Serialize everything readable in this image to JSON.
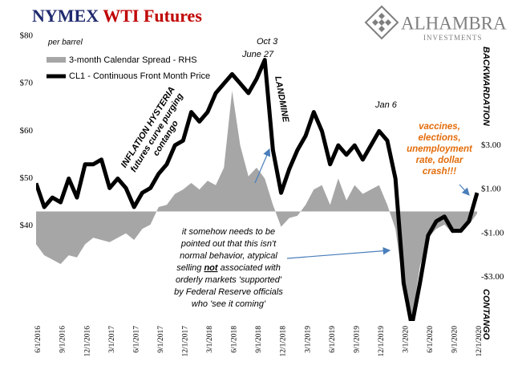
{
  "chart_data": {
    "type": "line",
    "title_parts": [
      "NYMEX",
      "WTI Futures"
    ],
    "logo": [
      "ALHAMBRA",
      "INVESTMENTS"
    ],
    "unit_note": "per barrel",
    "x": [
      "6/1/2016",
      "7/1/2016",
      "8/1/2016",
      "9/1/2016",
      "10/1/2016",
      "11/1/2016",
      "12/1/2016",
      "1/1/2017",
      "2/1/2017",
      "3/1/2017",
      "4/1/2017",
      "5/1/2017",
      "6/1/2017",
      "7/1/2017",
      "8/1/2017",
      "9/1/2017",
      "10/1/2017",
      "11/1/2017",
      "12/1/2017",
      "1/1/2018",
      "2/1/2018",
      "3/1/2018",
      "4/1/2018",
      "5/1/2018",
      "6/1/2018",
      "7/1/2018",
      "8/1/2018",
      "9/1/2018",
      "10/1/2018",
      "11/1/2018",
      "12/1/2018",
      "1/1/2019",
      "2/1/2019",
      "3/1/2019",
      "4/1/2019",
      "5/1/2019",
      "6/1/2019",
      "7/1/2019",
      "8/1/2019",
      "9/1/2019",
      "10/1/2019",
      "11/1/2019",
      "12/1/2019",
      "1/1/2020",
      "2/1/2020",
      "3/1/2020",
      "4/1/2020",
      "5/1/2020",
      "6/1/2020",
      "7/1/2020",
      "8/1/2020",
      "9/1/2020",
      "10/1/2020",
      "11/1/2020",
      "12/1/2020"
    ],
    "xticks": [
      "6/1/2016",
      "9/1/2016",
      "12/1/2016",
      "3/1/2017",
      "6/1/2017",
      "9/1/2017",
      "12/1/2017",
      "3/1/2018",
      "6/1/2018",
      "9/1/2018",
      "12/1/2018",
      "3/1/2019",
      "6/1/2019",
      "9/1/2019",
      "12/1/2019",
      "3/1/2020",
      "6/1/2020",
      "9/1/2020",
      "12/1/2020"
    ],
    "xlim": [
      "6/1/2016",
      "12/1/2020"
    ],
    "series": [
      {
        "name": "3-month Calendar Spread - RHS",
        "color": "#a6a6a6",
        "axis": "y2",
        "values": [
          -1.5,
          -2.0,
          -2.2,
          -2.4,
          -2.0,
          -2.1,
          -1.5,
          -1.2,
          -1.3,
          -1.4,
          -1.2,
          -1.0,
          -1.3,
          -0.8,
          -0.6,
          0.2,
          0.3,
          0.8,
          1.0,
          1.3,
          1.0,
          1.4,
          1.2,
          2.0,
          5.5,
          3.0,
          1.6,
          2.0,
          1.5,
          0.3,
          -0.7,
          -0.3,
          -0.2,
          0.3,
          1.0,
          1.2,
          0.3,
          1.5,
          0.5,
          1.2,
          0.8,
          1.0,
          1.2,
          0.3,
          -0.8,
          -3.5,
          -5,
          -2.5,
          -1.2,
          -0.8,
          -0.6,
          -1.0,
          -0.8,
          -0.6,
          -0.1
        ]
      },
      {
        "name": "CL1 - Continuous Front Month Price",
        "color": "#000000",
        "values": [
          49,
          44,
          46,
          45,
          50,
          46,
          53,
          53,
          54,
          48,
          50,
          48,
          44,
          47,
          48,
          51,
          53,
          57,
          58,
          64,
          62,
          64,
          68,
          70,
          72,
          70,
          68,
          71,
          75,
          56,
          47,
          52,
          56,
          59,
          64,
          60,
          53,
          57,
          55,
          57,
          54,
          57,
          60,
          58,
          50,
          28,
          19,
          28,
          38,
          41,
          42,
          39,
          39,
          41,
          47
        ]
      }
    ],
    "ylim": [
      20,
      80
    ],
    "yticks": [
      {
        "value": 40,
        "label": "$40"
      },
      {
        "value": 50,
        "label": "$50"
      },
      {
        "value": 60,
        "label": "$60"
      },
      {
        "value": 70,
        "label": "$70"
      },
      {
        "value": 80,
        "label": "$80"
      }
    ],
    "y2lim": [
      -5,
      8
    ],
    "y2ticks": [
      {
        "value": -3,
        "label": "-$3.00"
      },
      {
        "value": -1,
        "label": "-$1.00"
      },
      {
        "value": 1,
        "label": "$1.00"
      },
      {
        "value": 3,
        "label": "$3.00"
      }
    ],
    "annotations": {
      "june27": "June 27",
      "oct3": "Oct 3",
      "jan6": "Jan 6",
      "landmine": "LANDMINE",
      "hysteria": [
        "INFLATION HYSTERIA",
        "futures curve purging",
        "contango"
      ],
      "backwardation": "BACKWARDATION",
      "contango": "CONTANGO",
      "vaccines": [
        "vaccines,",
        "elections,",
        "unemployment",
        "rate, dollar",
        "crash!!!"
      ],
      "note": [
        [
          "it somehow needs to be"
        ],
        [
          "pointed out that this isn't"
        ],
        [
          "normal behavior, atypical"
        ],
        [
          "selling ",
          "not",
          " associated with"
        ],
        [
          "orderly markets 'supported'"
        ],
        [
          "by Federal Reserve officials"
        ],
        [
          "who 'see it coming'"
        ]
      ]
    }
  }
}
